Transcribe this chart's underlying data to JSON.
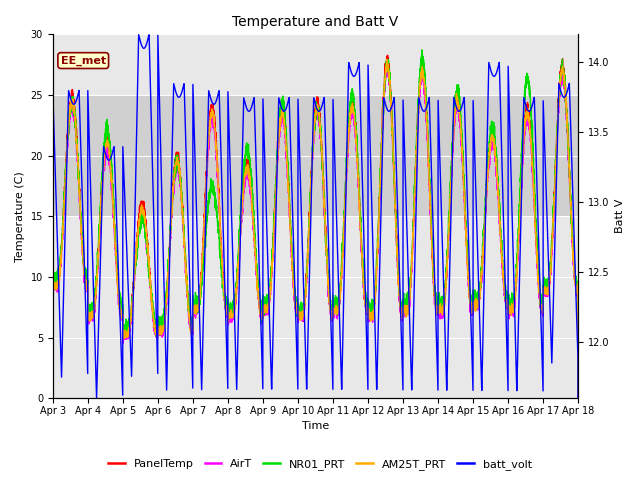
{
  "title": "Temperature and Batt V",
  "xlabel": "Time",
  "ylabel_left": "Temperature (C)",
  "ylabel_right": "Batt V",
  "annotation": "EE_met",
  "ylim_left": [
    0,
    30
  ],
  "ylim_right": [
    11.6,
    14.2
  ],
  "x_tick_labels": [
    "Apr 3",
    "Apr 4",
    "Apr 5",
    "Apr 6",
    "Apr 7",
    "Apr 8",
    "Apr 9",
    "Apr 10",
    "Apr 11",
    "Apr 12",
    "Apr 13",
    "Apr 14",
    "Apr 15",
    "Apr 16",
    "Apr 17",
    "Apr 18"
  ],
  "legend_entries": [
    "PanelTemp",
    "AirT",
    "NR01_PRT",
    "AM25T_PRT",
    "batt_volt"
  ],
  "legend_colors": [
    "#ff0000",
    "#ff00ff",
    "#00dd00",
    "#ffaa00",
    "#0000ff"
  ],
  "plot_bg_color": "#e8e8e8",
  "band_color": "#d0d0d0",
  "band_ylim": [
    15,
    25
  ],
  "n_days": 15,
  "temp_min_base": [
    9.5,
    7.0,
    5.5,
    5.8,
    7.5,
    7.0,
    7.5,
    7.0,
    7.5,
    7.0,
    7.5,
    7.5,
    8.0,
    7.5,
    9.0
  ],
  "temp_max_panel": [
    25.0,
    21.5,
    16.0,
    20.0,
    24.0,
    19.5,
    24.0,
    24.5,
    24.5,
    28.0,
    27.5,
    25.0,
    22.0,
    24.0,
    27.5
  ],
  "temp_max_nr01": [
    24.5,
    22.0,
    14.8,
    19.5,
    17.5,
    20.5,
    24.5,
    24.0,
    25.0,
    27.5,
    28.0,
    25.5,
    22.5,
    26.5,
    27.0
  ],
  "batt_day_max_v": [
    13.8,
    13.4,
    14.2,
    13.85,
    13.8,
    13.75,
    13.75,
    13.75,
    14.0,
    13.75,
    13.75,
    13.75,
    14.0,
    13.75,
    13.85
  ],
  "batt_night_min_v": [
    11.75,
    11.6,
    11.75,
    11.65,
    11.65,
    11.65,
    11.65,
    11.65,
    11.65,
    11.65,
    11.65,
    11.65,
    11.65,
    11.65,
    11.85
  ],
  "line_width": 1.0,
  "title_fontsize": 10,
  "axis_fontsize": 8,
  "tick_fontsize": 7,
  "legend_fontsize": 8
}
